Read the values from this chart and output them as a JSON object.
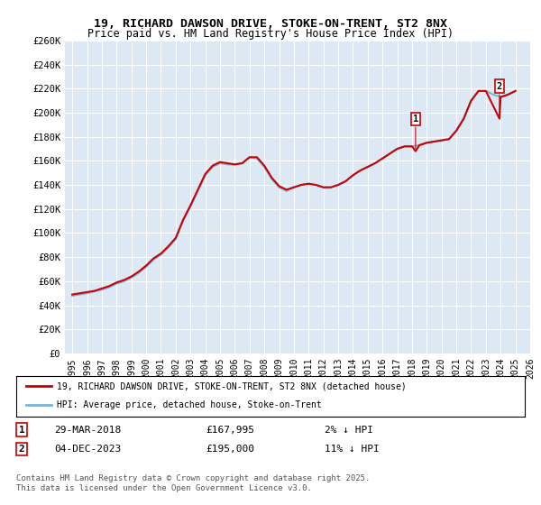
{
  "title1": "19, RICHARD DAWSON DRIVE, STOKE-ON-TRENT, ST2 8NX",
  "title2": "Price paid vs. HM Land Registry's House Price Index (HPI)",
  "ylabel": "",
  "xlabel": "",
  "ylim": [
    0,
    260000
  ],
  "yticks": [
    0,
    20000,
    40000,
    60000,
    80000,
    100000,
    120000,
    140000,
    160000,
    180000,
    200000,
    220000,
    240000,
    260000
  ],
  "ytick_labels": [
    "£0",
    "£20K",
    "£40K",
    "£60K",
    "£80K",
    "£100K",
    "£120K",
    "£140K",
    "£160K",
    "£180K",
    "£200K",
    "£220K",
    "£240K",
    "£260K"
  ],
  "bg_color": "#dce9f5",
  "line_color_red": "#cc0000",
  "line_color_blue": "#7fb3d3",
  "marker1_x": 2018.24,
  "marker1_y": 167995,
  "marker2_x": 2023.92,
  "marker2_y": 195000,
  "legend_label_red": "19, RICHARD DAWSON DRIVE, STOKE-ON-TRENT, ST2 8NX (detached house)",
  "legend_label_blue": "HPI: Average price, detached house, Stoke-on-Trent",
  "trans1_date": "29-MAR-2018",
  "trans1_price": "£167,995",
  "trans1_note": "2% ↓ HPI",
  "trans2_date": "04-DEC-2023",
  "trans2_price": "£195,000",
  "trans2_note": "11% ↓ HPI",
  "footer": "Contains HM Land Registry data © Crown copyright and database right 2025.\nThis data is licensed under the Open Government Licence v3.0.",
  "hpi_years": [
    1995,
    1995.5,
    1996,
    1996.5,
    1997,
    1997.5,
    1998,
    1998.5,
    1999,
    1999.5,
    2000,
    2000.5,
    2001,
    2001.5,
    2002,
    2002.5,
    2003,
    2003.5,
    2004,
    2004.5,
    2005,
    2005.5,
    2006,
    2006.5,
    2007,
    2007.5,
    2008,
    2008.5,
    2009,
    2009.5,
    2010,
    2010.5,
    2011,
    2011.5,
    2012,
    2012.5,
    2013,
    2013.5,
    2014,
    2014.5,
    2015,
    2015.5,
    2016,
    2016.5,
    2017,
    2017.5,
    2018,
    2018.5,
    2019,
    2019.5,
    2020,
    2020.5,
    2021,
    2021.5,
    2022,
    2022.5,
    2023,
    2023.5,
    2024,
    2024.5,
    2025
  ],
  "hpi_values": [
    48000,
    49000,
    50000,
    51500,
    53000,
    55000,
    58000,
    60000,
    63000,
    67000,
    72000,
    78000,
    82000,
    88000,
    95000,
    110000,
    122000,
    135000,
    148000,
    155000,
    158000,
    157000,
    157000,
    158000,
    163000,
    162000,
    155000,
    145000,
    138000,
    135000,
    138000,
    140000,
    141000,
    140000,
    138000,
    138000,
    140000,
    143000,
    148000,
    152000,
    155000,
    158000,
    162000,
    166000,
    170000,
    172000,
    172000,
    173000,
    175000,
    176000,
    177000,
    178000,
    185000,
    195000,
    210000,
    218000,
    218000,
    215000,
    213000,
    215000,
    218000
  ],
  "red_years": [
    1995,
    1995.5,
    1996,
    1996.5,
    1997,
    1997.5,
    1998,
    1998.5,
    1999,
    1999.5,
    2000,
    2000.5,
    2001,
    2001.5,
    2002,
    2002.5,
    2003,
    2003.5,
    2004,
    2004.5,
    2005,
    2005.5,
    2006,
    2006.5,
    2007,
    2007.5,
    2008,
    2008.5,
    2009,
    2009.5,
    2010,
    2010.5,
    2011,
    2011.5,
    2012,
    2012.5,
    2013,
    2013.5,
    2014,
    2014.5,
    2015,
    2015.5,
    2016,
    2016.5,
    2017,
    2017.5,
    2018,
    2018.24,
    2018.5,
    2019,
    2019.5,
    2020,
    2020.5,
    2021,
    2021.5,
    2022,
    2022.5,
    2023,
    2023.92,
    2024,
    2024.5,
    2025
  ],
  "red_values": [
    49000,
    50000,
    51000,
    52000,
    54000,
    56000,
    59000,
    61000,
    64000,
    68000,
    73000,
    79000,
    83000,
    89000,
    96000,
    111000,
    123000,
    136000,
    149000,
    156000,
    159000,
    158000,
    157000,
    158000,
    163000,
    163000,
    156000,
    146000,
    139000,
    136000,
    138000,
    140000,
    141000,
    140000,
    138000,
    138000,
    140000,
    143000,
    148000,
    152000,
    155000,
    158000,
    162000,
    166000,
    170000,
    172000,
    172000,
    167995,
    173000,
    175000,
    176000,
    177000,
    178000,
    185000,
    195000,
    210000,
    218000,
    218000,
    195000,
    213000,
    215000,
    218000
  ],
  "xlim": [
    1994.5,
    2026
  ],
  "xticks": [
    1995,
    1996,
    1997,
    1998,
    1999,
    2000,
    2001,
    2002,
    2003,
    2004,
    2005,
    2006,
    2007,
    2008,
    2009,
    2010,
    2011,
    2012,
    2013,
    2014,
    2015,
    2016,
    2017,
    2018,
    2019,
    2020,
    2021,
    2022,
    2023,
    2024,
    2025,
    2026
  ]
}
